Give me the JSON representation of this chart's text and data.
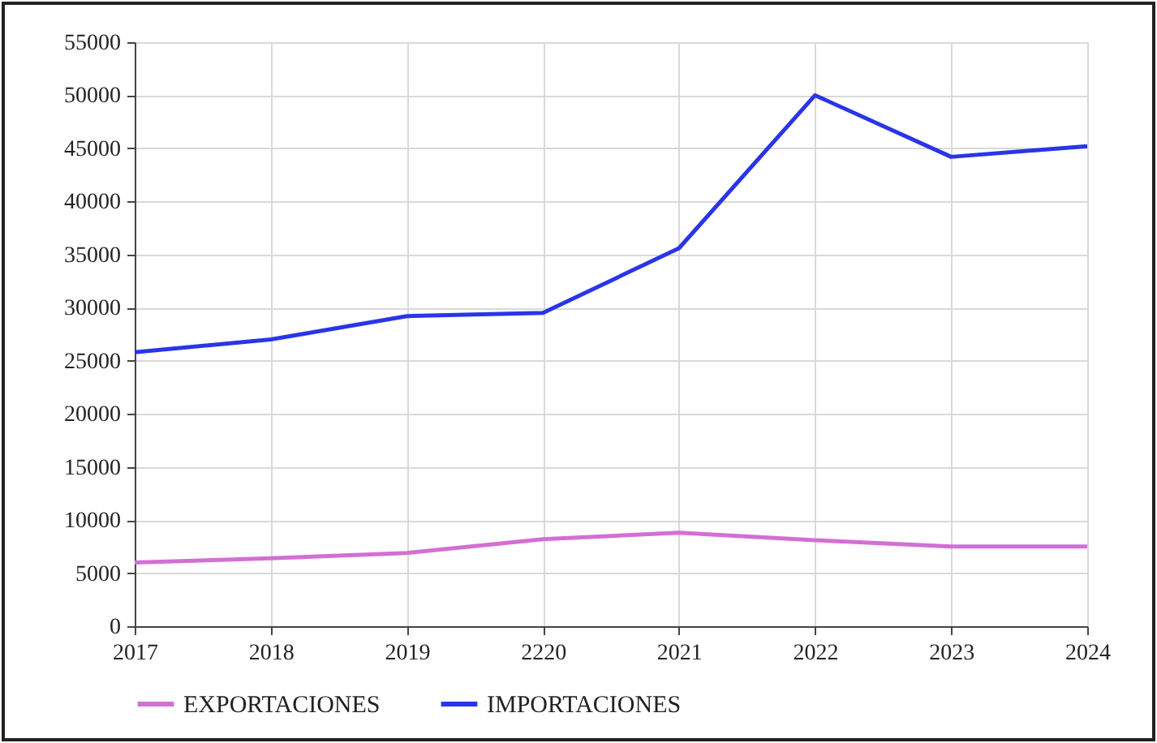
{
  "chart_data": {
    "type": "line",
    "categories": [
      "2017",
      "2018",
      "2019",
      "2220",
      "2021",
      "2022",
      "2023",
      "2024"
    ],
    "series": [
      {
        "name": "EXPORTACIONES",
        "color": "#d36fd4",
        "values": [
          6000,
          6400,
          6900,
          8200,
          8800,
          8100,
          7500,
          7500
        ]
      },
      {
        "name": "IMPORTACIONES",
        "color": "#2a35e8",
        "values": [
          25800,
          27000,
          29200,
          29500,
          35600,
          50000,
          44200,
          45200
        ]
      }
    ],
    "ylim": [
      0,
      55000
    ],
    "yticks": [
      0,
      5000,
      10000,
      15000,
      20000,
      25000,
      30000,
      35000,
      40000,
      45000,
      50000,
      55000
    ],
    "grid": true,
    "legend": "bottom",
    "marker": "none",
    "line_style": "solid"
  }
}
